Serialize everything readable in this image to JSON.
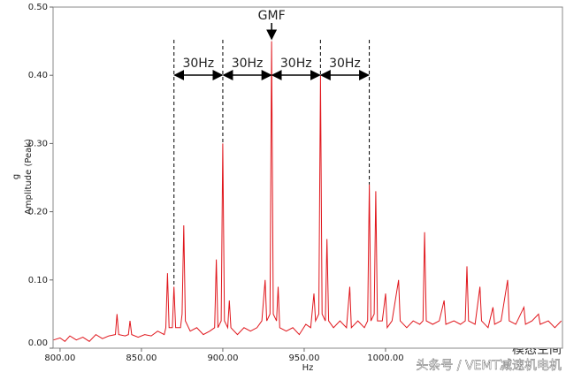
{
  "chart_data": {
    "type": "line",
    "x_label": "Hz",
    "y_label": "Amplitude (Peak)",
    "y_unit": "g",
    "x": [
      796,
      800,
      803,
      806,
      810,
      814,
      818,
      822,
      826,
      830,
      834,
      835,
      836,
      840,
      842,
      843,
      844,
      848,
      852,
      856,
      860,
      864,
      865,
      866,
      867,
      869,
      870,
      871,
      874,
      875,
      876,
      877,
      880,
      884,
      888,
      892,
      895,
      896,
      897,
      899,
      900,
      901,
      903,
      904,
      905,
      909,
      913,
      917,
      921,
      924,
      926,
      927,
      929,
      930,
      931,
      933,
      934,
      935,
      939,
      943,
      947,
      951,
      954,
      956,
      957,
      959,
      960,
      961,
      963,
      964,
      965,
      968,
      972,
      976,
      978,
      979,
      983,
      987,
      989,
      990,
      991,
      993,
      994,
      995,
      998,
      1000,
      1001,
      1004,
      1008,
      1009,
      1013,
      1017,
      1021,
      1023,
      1024,
      1025,
      1029,
      1033,
      1036,
      1037,
      1042,
      1046,
      1049,
      1050,
      1051,
      1055,
      1058,
      1059,
      1063,
      1066,
      1067,
      1071,
      1075,
      1076,
      1080,
      1085,
      1086,
      1090,
      1094,
      1095,
      1100,
      1104,
      1108
    ],
    "series": [
      {
        "color": "#e0161c",
        "values": [
          0.012,
          0.015,
          0.01,
          0.018,
          0.012,
          0.016,
          0.01,
          0.02,
          0.014,
          0.018,
          0.02,
          0.05,
          0.02,
          0.018,
          0.02,
          0.04,
          0.02,
          0.016,
          0.02,
          0.018,
          0.025,
          0.02,
          0.03,
          0.11,
          0.03,
          0.03,
          0.09,
          0.03,
          0.03,
          0.05,
          0.18,
          0.04,
          0.025,
          0.03,
          0.02,
          0.025,
          0.03,
          0.13,
          0.03,
          0.04,
          0.3,
          0.04,
          0.03,
          0.07,
          0.03,
          0.02,
          0.03,
          0.025,
          0.03,
          0.04,
          0.1,
          0.04,
          0.05,
          0.45,
          0.05,
          0.04,
          0.09,
          0.03,
          0.025,
          0.03,
          0.02,
          0.035,
          0.03,
          0.08,
          0.04,
          0.05,
          0.4,
          0.05,
          0.04,
          0.16,
          0.04,
          0.03,
          0.04,
          0.03,
          0.09,
          0.03,
          0.04,
          0.03,
          0.04,
          0.24,
          0.04,
          0.05,
          0.23,
          0.04,
          0.04,
          0.08,
          0.03,
          0.04,
          0.1,
          0.04,
          0.03,
          0.04,
          0.035,
          0.04,
          0.17,
          0.04,
          0.035,
          0.04,
          0.07,
          0.035,
          0.04,
          0.035,
          0.04,
          0.12,
          0.04,
          0.035,
          0.09,
          0.04,
          0.03,
          0.06,
          0.035,
          0.04,
          0.1,
          0.04,
          0.035,
          0.06,
          0.035,
          0.04,
          0.05,
          0.035,
          0.04,
          0.03,
          0.04
        ]
      }
    ],
    "xlim": [
      795.7,
      1108.7
    ],
    "ylim": [
      0,
      0.5
    ],
    "xticks": [
      {
        "value": 800,
        "label": "800.00"
      },
      {
        "value": 850,
        "label": "850.00"
      },
      {
        "value": 900,
        "label": "900.00"
      },
      {
        "value": 950,
        "label": "950.00"
      },
      {
        "value": 1000,
        "label": "1000.00"
      }
    ],
    "yticks": [
      {
        "value": 0,
        "label": "0.00"
      },
      {
        "value": 0.1,
        "label": "0.10"
      },
      {
        "value": 0.2,
        "label": "0.20"
      },
      {
        "value": 0.3,
        "label": "0.30"
      },
      {
        "value": 0.4,
        "label": "0.40"
      },
      {
        "value": 0.5,
        "label": "0.50"
      }
    ],
    "marker": {
      "label": "GMF",
      "x": 930
    },
    "spans": [
      {
        "label": "30Hz",
        "from": 870,
        "to": 900
      },
      {
        "label": "30Hz",
        "from": 900,
        "to": 930
      },
      {
        "label": "30Hz",
        "from": 930,
        "to": 960
      },
      {
        "label": "30Hz",
        "from": 960,
        "to": 990
      }
    ],
    "watermark": [
      "模态空间",
      "头条号 / VEMT减速机电机"
    ]
  }
}
